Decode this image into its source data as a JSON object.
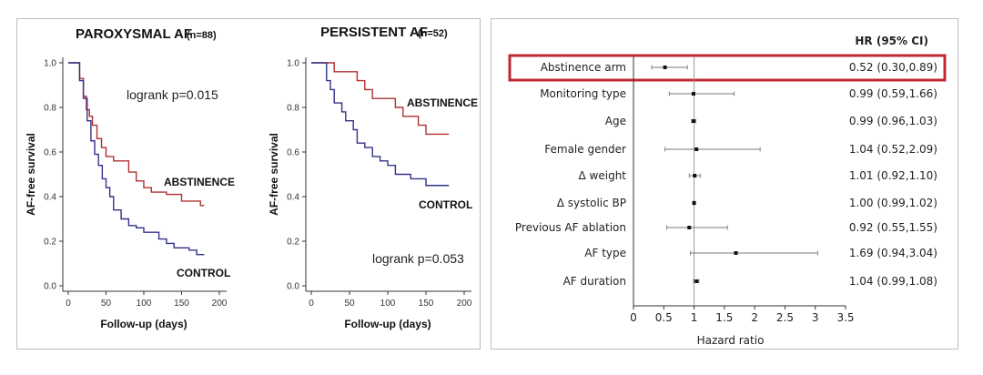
{
  "chart_data": [
    {
      "type": "line",
      "title": "PAROXYSMAL AF",
      "subtitle": "(n=88)",
      "xlabel": "Follow-up (days)",
      "ylabel": "AF-free survival",
      "xlim": [
        0,
        200
      ],
      "ylim": [
        0,
        1.0
      ],
      "xticks": [
        "0",
        "50",
        "100",
        "150",
        "200"
      ],
      "yticks": [
        "0.0",
        "0.2",
        "0.4",
        "0.6",
        "0.8",
        "1.0"
      ],
      "annotation": "logrank p=0.015",
      "series": [
        {
          "name": "ABSTINENCE",
          "color": "#b03030",
          "x": [
            0,
            13,
            15,
            20,
            24,
            28,
            32,
            38,
            44,
            50,
            60,
            70,
            80,
            90,
            100,
            110,
            120,
            130,
            150,
            170,
            175,
            180
          ],
          "y": [
            1.0,
            1.0,
            0.93,
            0.85,
            0.79,
            0.76,
            0.72,
            0.66,
            0.62,
            0.58,
            0.56,
            0.56,
            0.51,
            0.47,
            0.44,
            0.42,
            0.42,
            0.41,
            0.38,
            0.38,
            0.36,
            0.36
          ]
        },
        {
          "name": "CONTROL",
          "color": "#33338a",
          "x": [
            0,
            12,
            15,
            20,
            25,
            30,
            35,
            40,
            45,
            50,
            55,
            60,
            70,
            80,
            90,
            100,
            120,
            130,
            140,
            160,
            170,
            180
          ],
          "y": [
            1.0,
            1.0,
            0.92,
            0.84,
            0.74,
            0.65,
            0.59,
            0.54,
            0.48,
            0.44,
            0.4,
            0.34,
            0.3,
            0.27,
            0.26,
            0.24,
            0.21,
            0.19,
            0.17,
            0.16,
            0.14,
            0.14
          ]
        }
      ]
    },
    {
      "type": "line",
      "title": "PERSISTENT AF",
      "subtitle": "(n=52)",
      "xlabel": "Follow-up (days)",
      "ylabel": "AF-free survival",
      "xlim": [
        0,
        200
      ],
      "ylim": [
        0,
        1.0
      ],
      "xticks": [
        "0",
        "50",
        "100",
        "150",
        "200"
      ],
      "yticks": [
        "0.0",
        "0.2",
        "0.4",
        "0.6",
        "0.8",
        "1.0"
      ],
      "annotation": "logrank p=0.053",
      "series": [
        {
          "name": "ABSTINENCE",
          "color": "#b03030",
          "x": [
            0,
            20,
            30,
            40,
            50,
            60,
            70,
            80,
            90,
            100,
            110,
            120,
            130,
            140,
            150,
            160,
            170,
            180
          ],
          "y": [
            1.0,
            1.0,
            0.96,
            0.96,
            0.96,
            0.92,
            0.88,
            0.84,
            0.84,
            0.84,
            0.8,
            0.76,
            0.76,
            0.72,
            0.68,
            0.68,
            0.68,
            0.68
          ]
        },
        {
          "name": "CONTROL",
          "color": "#33338a",
          "x": [
            0,
            12,
            20,
            25,
            30,
            40,
            45,
            55,
            60,
            70,
            80,
            90,
            100,
            110,
            130,
            150,
            160,
            180
          ],
          "y": [
            1.0,
            1.0,
            0.92,
            0.88,
            0.82,
            0.78,
            0.74,
            0.7,
            0.64,
            0.62,
            0.58,
            0.56,
            0.54,
            0.5,
            0.48,
            0.45,
            0.45,
            0.45
          ]
        }
      ]
    },
    {
      "type": "forest",
      "header": "HR (95% CI)",
      "xlabel": "Hazard ratio",
      "xlim": [
        0,
        3.5
      ],
      "xticks": [
        "0",
        "0.5",
        "1",
        "1.5",
        "2",
        "2.5",
        "3",
        "3.5"
      ],
      "reference_line": 1,
      "highlight_row": "Abstinence arm",
      "highlight_color": "#c0282e",
      "rows": [
        {
          "label": "Abstinence arm",
          "hr": 0.52,
          "lo": 0.3,
          "hi": 0.89,
          "text": "0.52 (0.30,0.89)"
        },
        {
          "label": "Monitoring type",
          "hr": 0.99,
          "lo": 0.59,
          "hi": 1.66,
          "text": "0.99 (0.59,1.66)"
        },
        {
          "label": "Age",
          "hr": 0.99,
          "lo": 0.96,
          "hi": 1.03,
          "text": "0.99 (0.96,1.03)"
        },
        {
          "label": "Female gender",
          "hr": 1.04,
          "lo": 0.52,
          "hi": 2.09,
          "text": "1.04 (0.52,2.09)"
        },
        {
          "label": "Δ weight",
          "hr": 1.01,
          "lo": 0.92,
          "hi": 1.1,
          "text": "1.01 (0.92,1.10)"
        },
        {
          "label": "Δ systolic BP",
          "hr": 1.0,
          "lo": 0.99,
          "hi": 1.02,
          "text": "1.00 (0.99,1.02)"
        },
        {
          "label": "Previous AF ablation",
          "hr": 0.92,
          "lo": 0.55,
          "hi": 1.55,
          "text": "0.92 (0.55,1.55)"
        },
        {
          "label": "AF type",
          "hr": 1.69,
          "lo": 0.94,
          "hi": 3.04,
          "text": "1.69 (0.94,3.04)"
        },
        {
          "label": "AF duration",
          "hr": 1.04,
          "lo": 0.99,
          "hi": 1.08,
          "text": "1.04 (0.99,1.08)"
        }
      ]
    }
  ]
}
